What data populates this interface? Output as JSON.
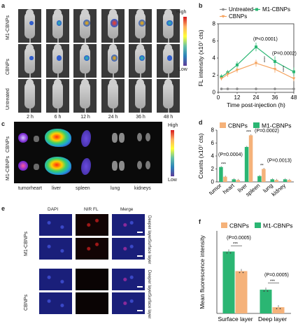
{
  "panel_a": {
    "label": "a",
    "rows": [
      "M1-CBNPs",
      "CBNPs",
      "Untreated"
    ],
    "times": [
      "2 h",
      "6 h",
      "12 h",
      "24 h",
      "36 h",
      "48 h"
    ],
    "colorbar": {
      "high": "High",
      "low": "Low"
    },
    "signal": [
      [
        0.1,
        0.35,
        0.7,
        0.95,
        0.75,
        0.55
      ],
      [
        0.05,
        0.3,
        0.5,
        0.65,
        0.5,
        0.3
      ],
      [
        0,
        0,
        0,
        0,
        0,
        0
      ]
    ]
  },
  "panel_c": {
    "label": "c",
    "rows": [
      "CBNPs",
      "M1-CBNPs"
    ],
    "organs": [
      "tumor",
      "heart",
      "liver",
      "spleen",
      "lung",
      "kidneys"
    ],
    "colorbar": {
      "high": "High",
      "low": "Low"
    }
  },
  "panel_e": {
    "label": "e",
    "columns": [
      "DAPI",
      "NIR FL",
      "Merge"
    ],
    "groups": [
      {
        "name": "M1-CBNPs",
        "layers": [
          "Deeper layer",
          "Surface layer"
        ]
      },
      {
        "name": "CBNPs",
        "layers": [
          "Deeper layer",
          "Surface layer"
        ]
      }
    ]
  },
  "chart_data": [
    {
      "panel": "b",
      "type": "line",
      "xlabel": "Time post-injection (h)",
      "ylabel": "FL intensity (x10⁷ cts)",
      "xlim": [
        0,
        48
      ],
      "ylim": [
        0,
        8
      ],
      "xticks": [
        "0",
        "12",
        "24",
        "36",
        "48"
      ],
      "yticks": [
        "0",
        "2",
        "4",
        "6",
        "8"
      ],
      "x": [
        2,
        6,
        12,
        24,
        36,
        48
      ],
      "series": [
        {
          "name": "Untreated",
          "color": "#8c8c8c",
          "values": [
            0.4,
            0.4,
            0.4,
            0.4,
            0.4,
            0.4
          ],
          "err": [
            0.05,
            0.05,
            0.05,
            0.05,
            0.05,
            0.05
          ]
        },
        {
          "name": "M1-CBNPs",
          "color": "#2bb673",
          "values": [
            1.8,
            2.3,
            3.2,
            5.3,
            3.6,
            2.4
          ],
          "err": [
            0.3,
            0.3,
            0.4,
            0.5,
            0.6,
            0.5
          ]
        },
        {
          "name": "CBNPs",
          "color": "#f5a25d",
          "values": [
            1.6,
            2.1,
            2.6,
            3.4,
            2.7,
            1.6
          ],
          "err": [
            0.2,
            0.3,
            0.3,
            0.4,
            0.4,
            0.3
          ]
        }
      ],
      "annotations": [
        "(P<0.0001)",
        "(P=0.0002)",
        "****",
        "****"
      ]
    },
    {
      "panel": "d",
      "type": "bar",
      "ylabel": "Counts (x10⁷ cts)",
      "ylim": [
        0,
        8
      ],
      "yticks": [
        "0",
        "2",
        "4",
        "6",
        "8"
      ],
      "categories": [
        "tumor",
        "heart",
        "liver",
        "spleen",
        "lung",
        "kidney"
      ],
      "series": [
        {
          "name": "CBNPs",
          "color": "#f5b27a",
          "values": [
            0.8,
            0.3,
            7.2,
            2.0,
            0.3,
            0.3
          ]
        },
        {
          "name": "M1-CBNPs",
          "color": "#2bb673",
          "values": [
            2.3,
            0.4,
            5.4,
            0.9,
            0.4,
            0.4
          ]
        }
      ],
      "annotations": [
        "(P=0.0004)",
        "(P=0.0002)",
        "(P=0.0013)",
        "***",
        "***",
        "**"
      ]
    },
    {
      "panel": "f",
      "type": "bar",
      "ylabel": "Mean fluorescence intensity",
      "ylim": [
        0,
        8
      ],
      "categories": [
        "Surface layer",
        "Deep layer"
      ],
      "series": [
        {
          "name": "CBNPs",
          "color": "#f5b27a",
          "values": [
            4.1,
            0.6
          ]
        },
        {
          "name": "M1-CBNPs",
          "color": "#2bb673",
          "values": [
            6.0,
            2.3
          ]
        }
      ],
      "annotations": [
        "(P=0.0005)",
        "(P=0.0005)",
        "***",
        "***"
      ]
    }
  ]
}
